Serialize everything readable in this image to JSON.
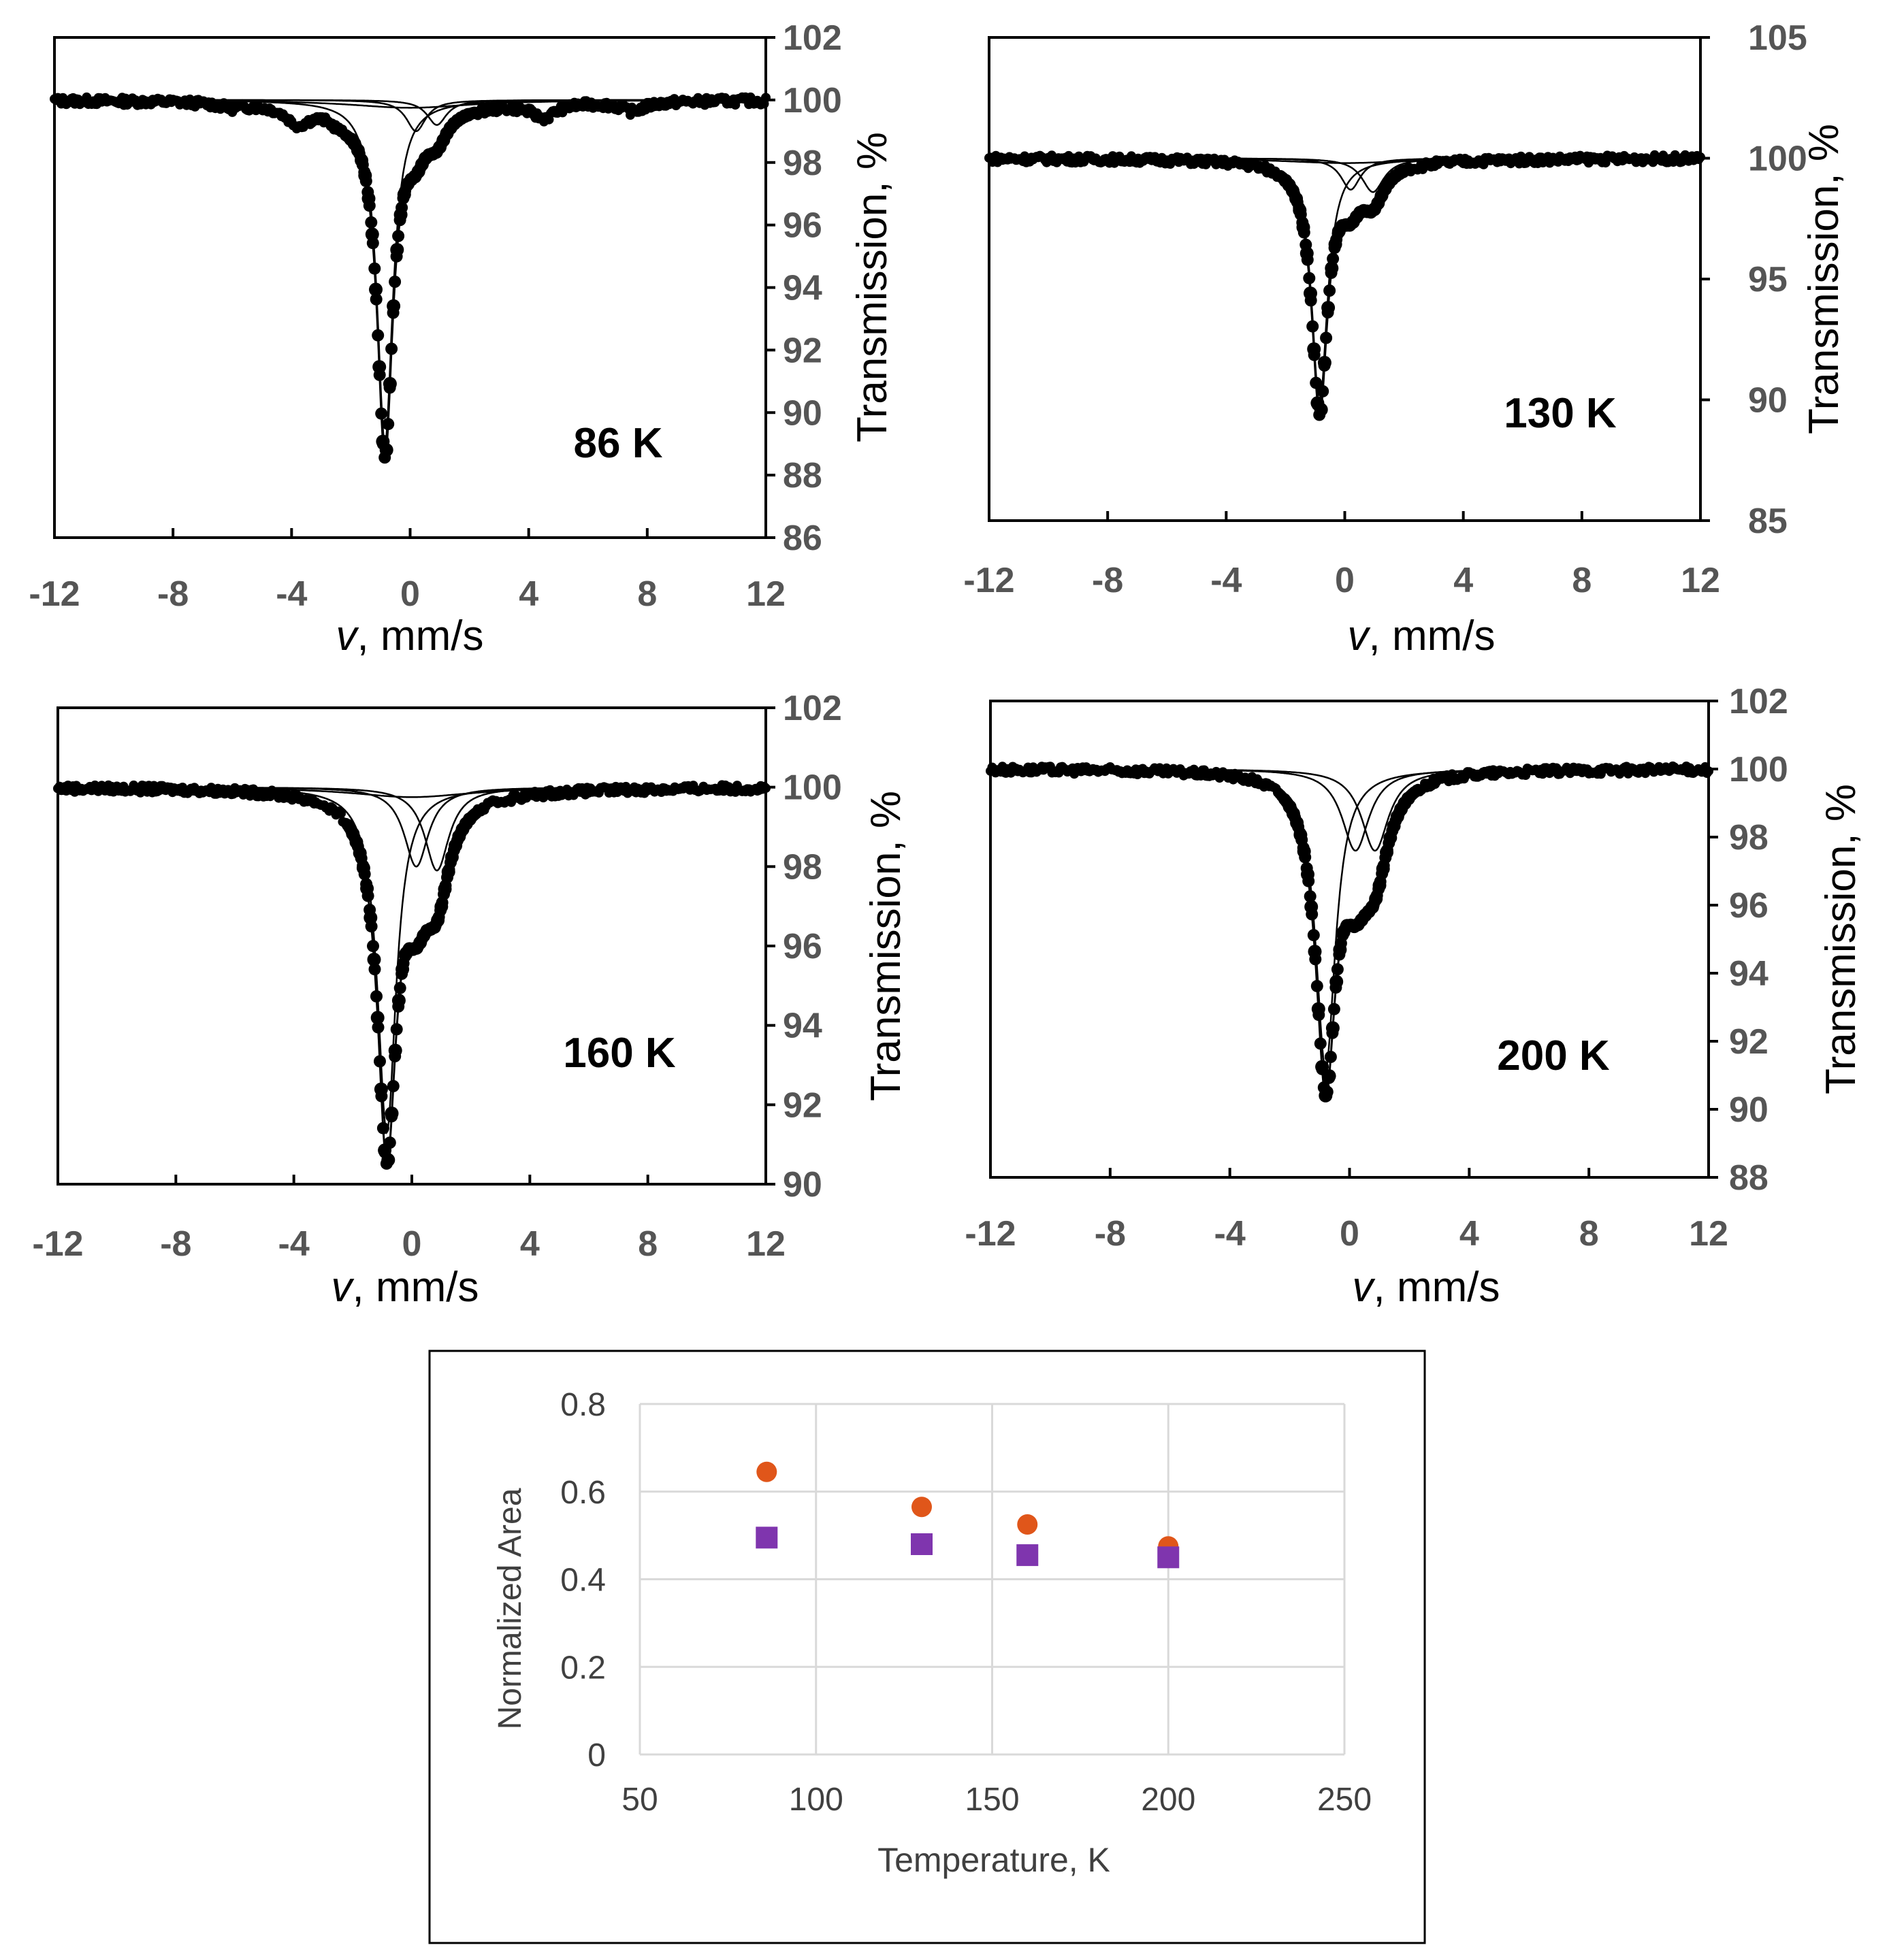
{
  "colors": {
    "ink": "#000000",
    "tick_label": "#555555",
    "orange": "#E0561A",
    "purple": "#7F35AE",
    "grid": "#D9D9D9"
  },
  "chart_data": [
    {
      "id": "p86",
      "type": "scatter",
      "title": "86 K",
      "xlabel_italic": "v",
      "xlabel_rest": ", mm/s",
      "ylabel": "Transmission, %",
      "xlim": [
        -12,
        12
      ],
      "ylim": [
        86,
        102
      ],
      "xticks": [
        -12,
        -8,
        -4,
        0,
        4,
        8,
        12
      ],
      "yticks": [
        86,
        88,
        90,
        92,
        94,
        96,
        98,
        100,
        102
      ],
      "xtick_labels": [
        "-12",
        "-8",
        "-4",
        "0",
        "4",
        "8",
        "12"
      ],
      "ytick_labels": [
        "86",
        "88",
        "90",
        "92",
        "94",
        "96",
        "98",
        "100",
        "102"
      ],
      "baseline": 100,
      "components": [
        {
          "center": -0.85,
          "depth": 11.0,
          "width": 0.32
        },
        {
          "center": 0.2,
          "depth": 1.0,
          "width": 0.4
        },
        {
          "center": 0.9,
          "depth": 0.8,
          "width": 0.4
        },
        {
          "center": 0.0,
          "depth": 0.25,
          "width": 2.5
        }
      ],
      "wiggles": [
        {
          "center": -3.8,
          "depth": 0.55,
          "width": 0.5
        },
        {
          "center": -2.3,
          "depth": 0.3,
          "width": 0.5
        },
        {
          "center": 4.5,
          "depth": 0.45,
          "width": 0.5
        },
        {
          "center": 7.5,
          "depth": 0.3,
          "width": 0.5
        },
        {
          "center": -6.0,
          "depth": 0.15,
          "width": 0.5
        }
      ]
    },
    {
      "id": "p130",
      "type": "scatter",
      "title": "130 K",
      "xlabel_italic": "v",
      "xlabel_rest": ", mm/s",
      "ylabel": "Transmission, %",
      "xlim": [
        -12,
        12
      ],
      "ylim": [
        85,
        105
      ],
      "xticks": [
        -12,
        -8,
        -4,
        0,
        4,
        8,
        12
      ],
      "yticks": [
        85,
        90,
        95,
        100,
        105
      ],
      "xtick_labels": [
        "-12",
        "-8",
        "-4",
        "0",
        "4",
        "8",
        "12"
      ],
      "ytick_labels": [
        "85",
        "90",
        "95",
        "100",
        "105"
      ],
      "baseline": 100,
      "components": [
        {
          "center": -0.85,
          "depth": 10.2,
          "width": 0.32
        },
        {
          "center": 0.2,
          "depth": 1.3,
          "width": 0.4
        },
        {
          "center": 0.95,
          "depth": 1.4,
          "width": 0.45
        },
        {
          "center": 0.0,
          "depth": 0.2,
          "width": 2.5
        }
      ],
      "wiggles": []
    },
    {
      "id": "p160",
      "type": "scatter",
      "title": "160 K",
      "xlabel_italic": "v",
      "xlabel_rest": ", mm/s",
      "ylabel": "Transmission, %",
      "xlim": [
        -12,
        12
      ],
      "ylim": [
        90,
        102
      ],
      "xticks": [
        -12,
        -8,
        -4,
        0,
        4,
        8,
        12
      ],
      "yticks": [
        90,
        92,
        94,
        96,
        98,
        100,
        102
      ],
      "xtick_labels": [
        "-12",
        "-8",
        "-4",
        "0",
        "4",
        "8",
        "12"
      ],
      "ytick_labels": [
        "90",
        "92",
        "94",
        "96",
        "98",
        "100",
        "102"
      ],
      "baseline": 100,
      "components": [
        {
          "center": -0.85,
          "depth": 8.7,
          "width": 0.38
        },
        {
          "center": 0.15,
          "depth": 2.0,
          "width": 0.5
        },
        {
          "center": 0.85,
          "depth": 2.1,
          "width": 0.5
        },
        {
          "center": 0.0,
          "depth": 0.25,
          "width": 2.5
        }
      ],
      "wiggles": []
    },
    {
      "id": "p200",
      "type": "scatter",
      "title": "200 K",
      "xlabel_italic": "v",
      "xlabel_rest": ", mm/s",
      "ylabel": "Transmission, %",
      "xlim": [
        -12,
        12
      ],
      "ylim": [
        88,
        102
      ],
      "xticks": [
        -12,
        -8,
        -4,
        0,
        4,
        8,
        12
      ],
      "yticks": [
        88,
        90,
        92,
        94,
        96,
        98,
        100,
        102
      ],
      "xtick_labels": [
        "-12",
        "-8",
        "-4",
        "0",
        "4",
        "8",
        "12"
      ],
      "ytick_labels": [
        "88",
        "90",
        "92",
        "94",
        "96",
        "98",
        "100",
        "102"
      ],
      "baseline": 100,
      "components": [
        {
          "center": -0.8,
          "depth": 8.8,
          "width": 0.4
        },
        {
          "center": 0.2,
          "depth": 2.4,
          "width": 0.55
        },
        {
          "center": 0.85,
          "depth": 2.4,
          "width": 0.55
        }
      ],
      "wiggles": []
    },
    {
      "id": "area",
      "type": "scatter",
      "title": "",
      "xlabel": "Temperature, K",
      "ylabel": "Normalized Area",
      "xlim": [
        50,
        250
      ],
      "ylim": [
        0,
        0.8
      ],
      "xticks": [
        50,
        100,
        150,
        200,
        250
      ],
      "yticks": [
        0,
        0.2,
        0.4,
        0.6,
        0.8
      ],
      "xtick_labels": [
        "50",
        "100",
        "150",
        "200",
        "250"
      ],
      "ytick_labels": [
        "0",
        "0.2",
        "0.4",
        "0.6",
        "0.8"
      ],
      "grid": true,
      "series": [
        {
          "name": "orange circles",
          "marker": "circle",
          "x": [
            86,
            130,
            160,
            200
          ],
          "y": [
            0.645,
            0.565,
            0.525,
            0.475
          ]
        },
        {
          "name": "purple squares",
          "marker": "square",
          "x": [
            86,
            130,
            160,
            200
          ],
          "y": [
            0.495,
            0.48,
            0.455,
            0.45
          ]
        }
      ]
    }
  ]
}
